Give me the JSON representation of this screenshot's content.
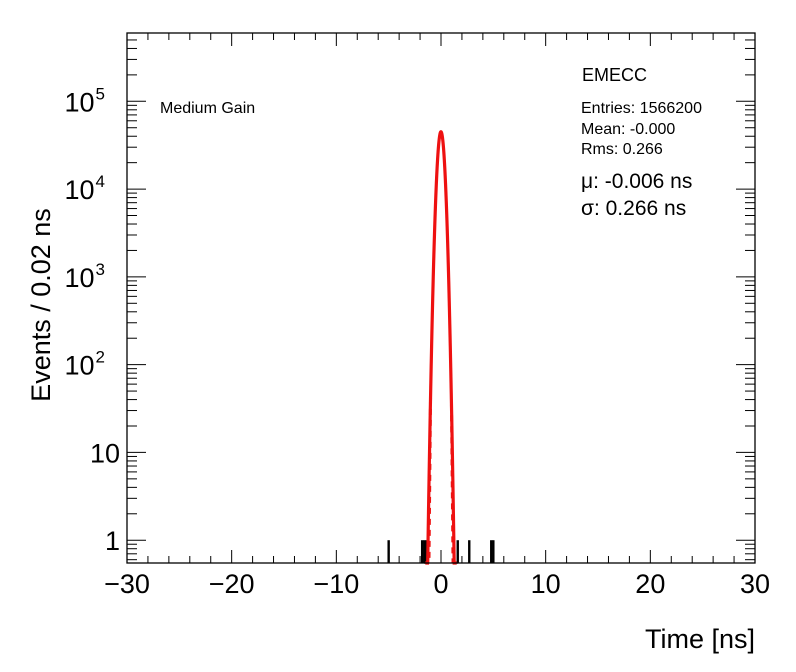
{
  "chart_data": {
    "type": "histogram",
    "xlabel": "Time [ns]",
    "ylabel": "Events / 0.02 ns",
    "xlim": [
      -30,
      30
    ],
    "ylim": [
      0.55,
      600000
    ],
    "yscale": "log",
    "grid": false,
    "x_ticks": [
      -30,
      -20,
      -10,
      0,
      10,
      20,
      30
    ],
    "x_tick_labels": [
      "−30",
      "−20",
      "−10",
      "0",
      "10",
      "20",
      "30"
    ],
    "y_ticks": [
      {
        "value": 1,
        "mantissa": "1",
        "exponent": ""
      },
      {
        "value": 10,
        "mantissa": "10",
        "exponent": ""
      },
      {
        "value": 100,
        "mantissa": "10",
        "exponent": "2"
      },
      {
        "value": 1000,
        "mantissa": "10",
        "exponent": "3"
      },
      {
        "value": 10000,
        "mantissa": "10",
        "exponent": "4"
      },
      {
        "value": 100000,
        "mantissa": "10",
        "exponent": "5"
      }
    ],
    "histogram_color": "#000000",
    "fit_color": "#ee1111",
    "peak_events": 45000,
    "fit": {
      "mu": -0.006,
      "sigma": 0.266,
      "amplitude": 45000
    },
    "outlier_bins": [
      {
        "x": -5.0,
        "events": 1
      },
      {
        "x": -1.8,
        "events": 1
      },
      {
        "x": -1.6,
        "events": 1
      },
      {
        "x": -1.4,
        "events": 1
      },
      {
        "x": 1.6,
        "events": 1
      },
      {
        "x": 2.7,
        "events": 1
      },
      {
        "x": 4.8,
        "events": 1
      },
      {
        "x": 5.0,
        "events": 1
      }
    ]
  },
  "annotations": {
    "gain": "Medium Gain",
    "stats_title": "EMECC",
    "entries": "Entries: 1566200",
    "mean": "Mean: -0.000",
    "rms": "Rms: 0.266",
    "mu_text": "μ: -0.006 ns",
    "sigma_text": "σ: 0.266 ns"
  }
}
